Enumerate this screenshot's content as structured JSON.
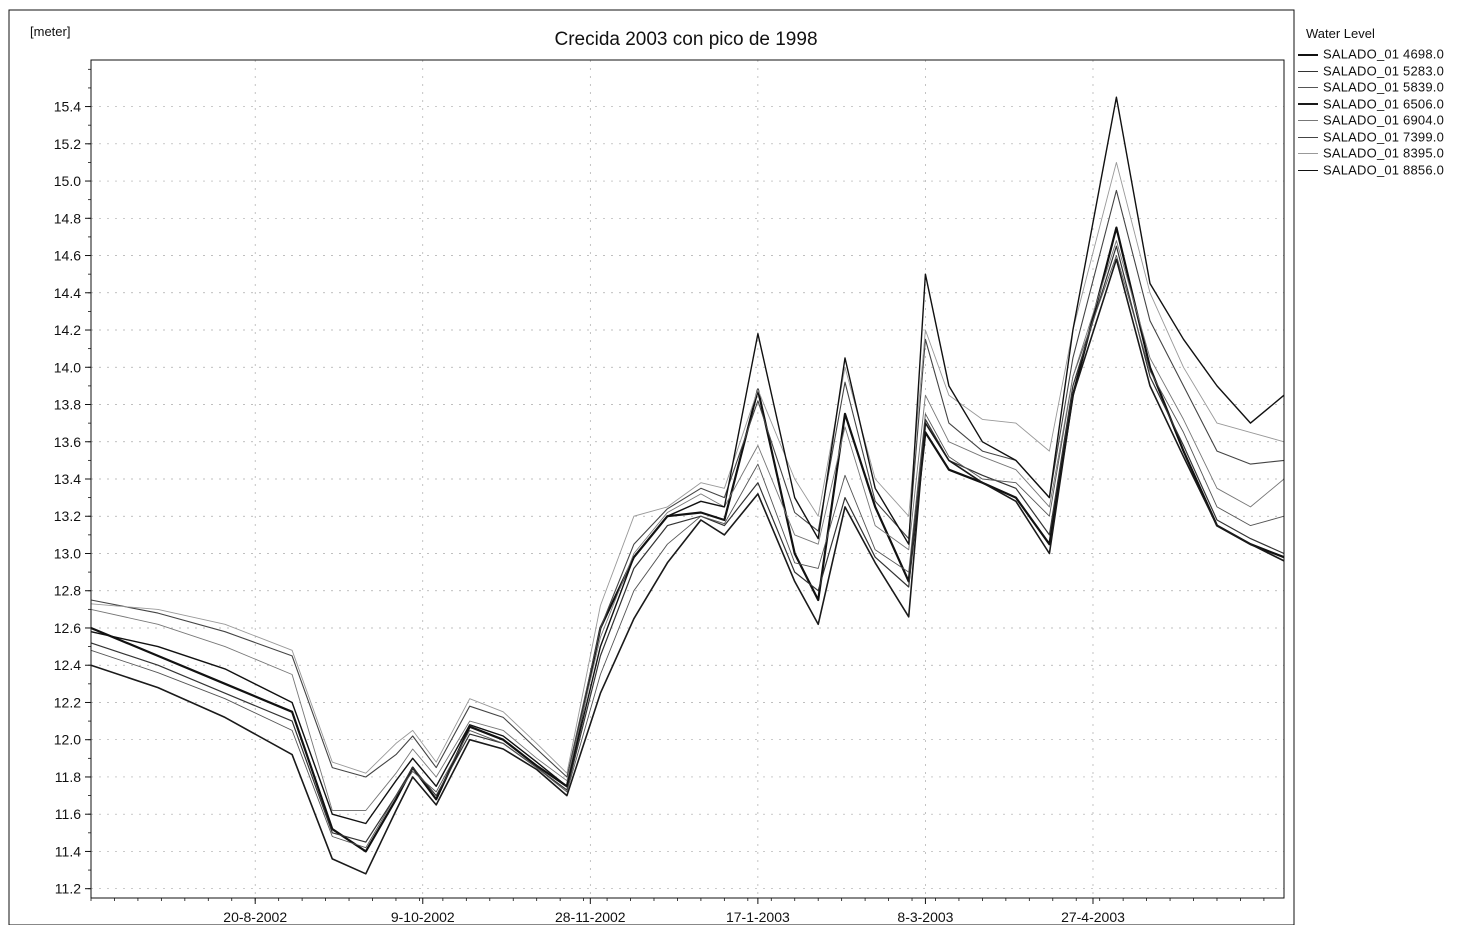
{
  "chart_data": {
    "type": "line",
    "title": "Crecida 2003 con pico de 1998",
    "ylabel": "[meter]",
    "xlabel": "",
    "ylim": [
      11.15,
      15.65
    ],
    "xlim": [
      "2002-07-02",
      "2003-06-23"
    ],
    "grid": true,
    "legend_title": "Water Level",
    "legend_position": "right",
    "y_ticks": [
      "11.2",
      "11.4",
      "11.6",
      "11.8",
      "12.0",
      "12.2",
      "12.4",
      "12.6",
      "12.8",
      "13.0",
      "13.2",
      "13.4",
      "13.6",
      "13.8",
      "14.0",
      "14.2",
      "14.4",
      "14.6",
      "14.8",
      "15.0",
      "15.2",
      "15.4"
    ],
    "x_ticks": [
      {
        "label": "20-8-2002",
        "date": "2002-08-20"
      },
      {
        "label": "9-10-2002",
        "date": "2002-10-09"
      },
      {
        "label": "28-11-2002",
        "date": "2002-11-28"
      },
      {
        "label": "17-1-2003",
        "date": "2003-01-17"
      },
      {
        "label": "8-3-2003",
        "date": "2003-03-08"
      },
      {
        "label": "27-4-2003",
        "date": "2003-04-27"
      }
    ],
    "x": [
      "2002-07-02",
      "2002-07-22",
      "2002-08-11",
      "2002-08-31",
      "2002-09-12",
      "2002-09-22",
      "2002-10-01",
      "2002-10-06",
      "2002-10-13",
      "2002-10-23",
      "2002-11-02",
      "2002-11-12",
      "2002-11-21",
      "2002-12-01",
      "2002-12-11",
      "2002-12-21",
      "2002-12-31",
      "2003-01-07",
      "2003-01-17",
      "2003-01-28",
      "2003-02-04",
      "2003-02-12",
      "2003-02-21",
      "2003-03-03",
      "2003-03-08",
      "2003-03-15",
      "2003-03-25",
      "2003-04-04",
      "2003-04-14",
      "2003-04-21",
      "2003-05-04",
      "2003-05-14",
      "2003-05-24",
      "2003-06-03",
      "2003-06-13",
      "2003-06-23"
    ],
    "series": [
      {
        "name": "SALADO_01  4698.0",
        "color": "#111111",
        "width": 2.2,
        "values": [
          12.6,
          12.45,
          12.3,
          12.15,
          11.52,
          11.4,
          11.68,
          11.85,
          11.68,
          12.07,
          12.0,
          11.86,
          11.75,
          12.6,
          12.98,
          13.2,
          13.22,
          13.18,
          13.88,
          13.0,
          12.75,
          13.75,
          13.25,
          12.85,
          13.65,
          13.45,
          13.38,
          13.3,
          13.05,
          13.85,
          14.75,
          14.0,
          13.55,
          13.15,
          13.05,
          12.98
        ]
      },
      {
        "name": "SALADO_01  5283.0",
        "color": "#333333",
        "width": 1.2,
        "values": [
          12.52,
          12.4,
          12.25,
          12.1,
          11.5,
          11.45,
          11.7,
          11.85,
          11.7,
          12.03,
          11.98,
          11.85,
          11.73,
          12.45,
          12.92,
          13.15,
          13.2,
          13.15,
          13.38,
          12.9,
          12.8,
          13.3,
          12.98,
          12.82,
          13.72,
          13.5,
          13.42,
          13.35,
          13.1,
          13.9,
          14.65,
          13.95,
          13.58,
          13.18,
          13.08,
          13.0
        ]
      },
      {
        "name": "SALADO_01  5839.0",
        "color": "#555555",
        "width": 0.9,
        "values": [
          12.48,
          12.36,
          12.22,
          12.05,
          11.48,
          11.42,
          11.7,
          11.83,
          11.72,
          12.05,
          11.98,
          11.85,
          11.72,
          12.35,
          12.8,
          13.05,
          13.2,
          13.16,
          13.48,
          12.95,
          12.92,
          13.42,
          13.02,
          12.9,
          13.75,
          13.52,
          13.4,
          13.38,
          13.2,
          13.95,
          14.6,
          13.98,
          13.65,
          13.25,
          13.15,
          13.2
        ]
      },
      {
        "name": "SALADO_01  6506.0",
        "color": "#1a1a1a",
        "width": 1.6,
        "values": [
          12.4,
          12.28,
          12.12,
          11.92,
          11.36,
          11.28,
          11.62,
          11.8,
          11.65,
          12.0,
          11.95,
          11.84,
          11.7,
          12.25,
          12.65,
          12.95,
          13.18,
          13.1,
          13.32,
          12.85,
          12.62,
          13.25,
          12.95,
          12.66,
          13.7,
          13.5,
          13.38,
          13.28,
          13.0,
          13.85,
          14.58,
          13.9,
          13.52,
          13.15,
          13.05,
          12.96
        ]
      },
      {
        "name": "SALADO_01  6904.0",
        "color": "#777777",
        "width": 0.9,
        "values": [
          12.7,
          12.62,
          12.5,
          12.35,
          11.62,
          11.62,
          11.82,
          11.95,
          11.8,
          12.1,
          12.05,
          11.9,
          11.78,
          12.55,
          13.0,
          13.22,
          13.32,
          13.25,
          13.58,
          13.1,
          13.05,
          13.68,
          13.15,
          13.02,
          13.85,
          13.6,
          13.52,
          13.45,
          13.25,
          13.95,
          14.68,
          14.05,
          13.72,
          13.35,
          13.25,
          13.4
        ]
      },
      {
        "name": "SALADO_01  7399.0",
        "color": "#444444",
        "width": 1.1,
        "values": [
          12.75,
          12.68,
          12.58,
          12.45,
          11.85,
          11.8,
          11.92,
          12.02,
          11.85,
          12.18,
          12.12,
          11.95,
          11.8,
          12.6,
          13.05,
          13.24,
          13.35,
          13.3,
          13.82,
          13.22,
          13.12,
          13.92,
          13.28,
          13.08,
          14.15,
          13.7,
          13.55,
          13.5,
          13.3,
          14.05,
          14.95,
          14.25,
          13.9,
          13.55,
          13.48,
          13.5
        ]
      },
      {
        "name": "SALADO_01  8395.0",
        "color": "#999999",
        "width": 0.9,
        "values": [
          12.73,
          12.7,
          12.62,
          12.48,
          11.88,
          11.82,
          11.98,
          12.05,
          11.88,
          12.22,
          12.15,
          11.98,
          11.82,
          12.72,
          13.2,
          13.25,
          13.38,
          13.35,
          13.88,
          13.4,
          13.2,
          14.0,
          13.4,
          13.2,
          14.2,
          13.85,
          13.72,
          13.7,
          13.55,
          14.2,
          15.1,
          14.4,
          14.0,
          13.7,
          13.65,
          13.6
        ]
      },
      {
        "name": "SALADO_01  8856.0",
        "color": "#111111",
        "width": 1.4,
        "values": [
          12.58,
          12.5,
          12.38,
          12.2,
          11.6,
          11.55,
          11.78,
          11.9,
          11.75,
          12.08,
          12.02,
          11.88,
          11.75,
          12.5,
          12.98,
          13.2,
          13.28,
          13.25,
          14.18,
          13.3,
          13.08,
          14.05,
          13.35,
          13.05,
          14.5,
          13.9,
          13.6,
          13.5,
          13.3,
          14.2,
          15.45,
          14.45,
          14.15,
          13.9,
          13.7,
          13.85
        ]
      }
    ]
  }
}
